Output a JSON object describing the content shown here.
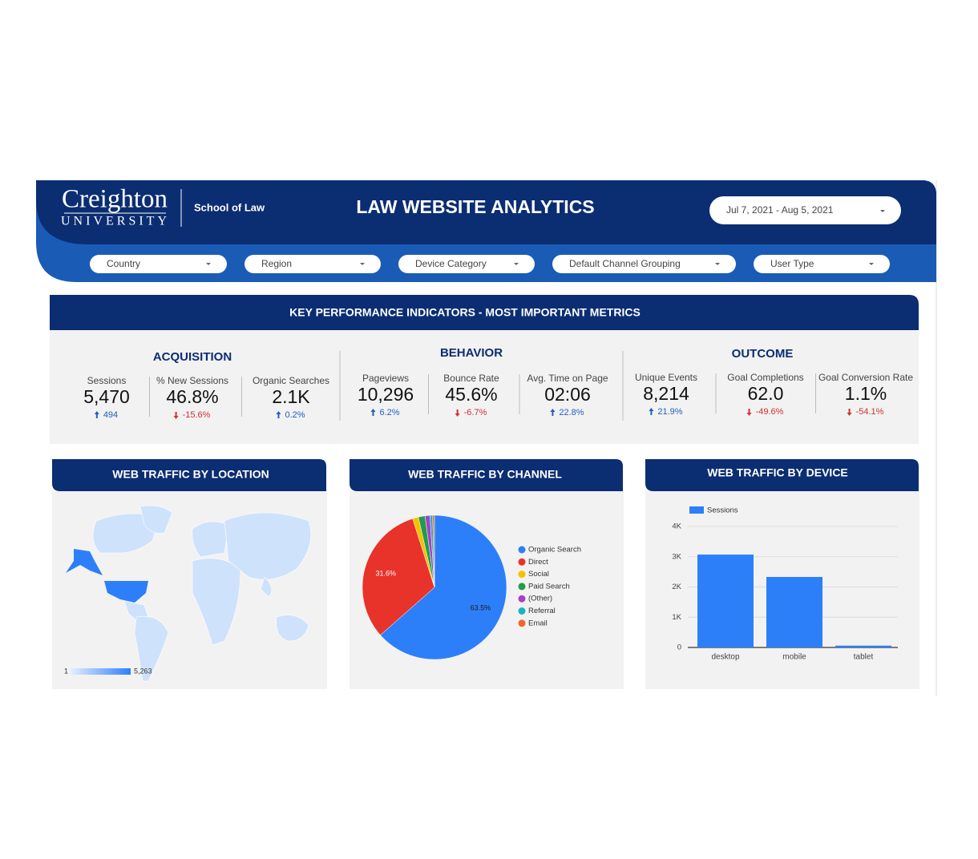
{
  "header": {
    "logo_name": "Creighton",
    "logo_sub": "UNIVERSITY",
    "school": "School of Law",
    "title": "LAW WEBSITE ANALYTICS",
    "date_range": "Jul 7, 2021 - Aug 5, 2021"
  },
  "filters": [
    "Country",
    "Region",
    "Device Category",
    "Default Channel Grouping",
    "User Type"
  ],
  "kpi": {
    "title": "KEY PERFORMANCE INDICATORS - MOST IMPORTANT METRICS",
    "groups": [
      {
        "name": "ACQUISITION",
        "metrics": [
          {
            "label": "Sessions",
            "value": "5,470",
            "change": "494",
            "direction": "up"
          },
          {
            "label": "% New Sessions",
            "value": "46.8%",
            "change": "-15.6%",
            "direction": "down"
          },
          {
            "label": "Organic Searches",
            "value": "2.1K",
            "change": "0.2%",
            "direction": "up"
          }
        ]
      },
      {
        "name": "BEHAVIOR",
        "metrics": [
          {
            "label": "Pageviews",
            "value": "10,296",
            "change": "6.2%",
            "direction": "up"
          },
          {
            "label": "Bounce Rate",
            "value": "45.6%",
            "change": "-6.7%",
            "direction": "down"
          },
          {
            "label": "Avg. Time on Page",
            "value": "02:06",
            "change": "22.8%",
            "direction": "up"
          }
        ]
      },
      {
        "name": "OUTCOME",
        "metrics": [
          {
            "label": "Unique Events",
            "value": "8,214",
            "change": "21.9%",
            "direction": "up"
          },
          {
            "label": "Goal Completions",
            "value": "62.0",
            "change": "-49.6%",
            "direction": "down"
          },
          {
            "label": "Goal Conversion Rate",
            "value": "1.1%",
            "change": "-54.1%",
            "direction": "down"
          }
        ]
      }
    ]
  },
  "location": {
    "title": "WEB TRAFFIC BY LOCATION",
    "legend_min": "1",
    "legend_max": "5,263"
  },
  "chart_data": [
    {
      "type": "pie",
      "title": "WEB TRAFFIC BY CHANNEL",
      "categories": [
        "Organic Search",
        "Direct",
        "Social",
        "Paid Search",
        "(Other)",
        "Referral",
        "Email"
      ],
      "values": [
        63.5,
        31.6,
        1.3,
        1.5,
        1.1,
        0.6,
        0.4
      ],
      "value_labels": [
        "63.5%",
        "31.6%",
        null,
        null,
        null,
        null,
        null
      ],
      "colors": [
        "#2d7ff9",
        "#e8332a",
        "#f6c000",
        "#1e9e4a",
        "#a741c8",
        "#17b4c8",
        "#f0662d"
      ]
    },
    {
      "type": "bar",
      "title": "WEB TRAFFIC BY DEVICE",
      "categories": [
        "desktop",
        "mobile",
        "tablet"
      ],
      "series": [
        {
          "name": "Sessions",
          "color": "#2d7ff9",
          "values": [
            3070,
            2330,
            60
          ]
        }
      ],
      "ylim": [
        0,
        4000
      ],
      "yticks": [
        0,
        {
          "value": 1000,
          "label": "1K"
        },
        {
          "value": 2000,
          "label": "2K"
        },
        {
          "value": 3000,
          "label": "3K"
        },
        {
          "value": 4000,
          "label": "4K"
        }
      ],
      "grid": true
    }
  ]
}
